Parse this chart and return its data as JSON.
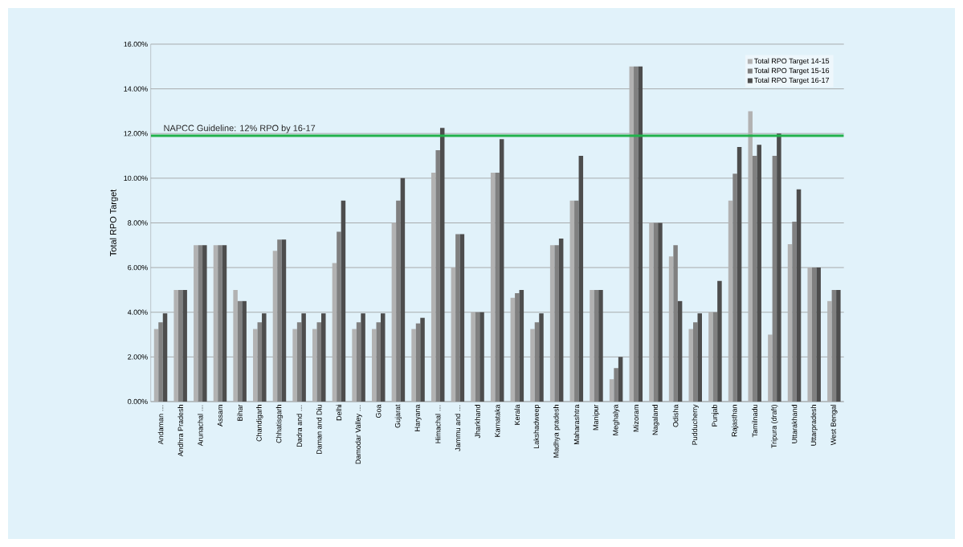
{
  "chart_data": {
    "type": "bar",
    "ylabel": "Total RPO Target",
    "categories": [
      "Andaman …",
      "Andhra Pradesh",
      "Arunachal …",
      "Assam",
      "Bihar",
      "Chandigarh",
      "Chhatisgarh",
      "Dadra and …",
      "Daman and Diu",
      "Delhi",
      "Damodar Valley …",
      "Goa",
      "Gujarat",
      "Haryana",
      "Himachal …",
      "Jammu and …",
      "Jharkhand",
      "Karnataka",
      "Kerala",
      "Lakshadweep",
      "Madhya pradesh",
      "Maharashtra",
      "Manipur",
      "Meghalya",
      "Mizoram",
      "Nagaland",
      "Odisha",
      "Pudducherry",
      "Punjab",
      "Rajasthan",
      "Tamilnadu",
      "Tripura (draft)",
      "Uttarakhand",
      "Uttarpradesh",
      "West Bengal"
    ],
    "series": [
      {
        "name": "Total RPO Target 14-15",
        "color": "#b2b2b2",
        "values": [
          3.25,
          5,
          7,
          7,
          5,
          3.25,
          6.75,
          3.25,
          3.25,
          6.2,
          3.25,
          3.25,
          8,
          3.25,
          10.25,
          6,
          4,
          10.25,
          4.65,
          3.25,
          7,
          9,
          5,
          1,
          15,
          8,
          6.5,
          3.25,
          4,
          9,
          13,
          3,
          7.05,
          6,
          4.5
        ]
      },
      {
        "name": "Total RPO Target 15-16",
        "color": "#808080",
        "values": [
          3.55,
          5,
          7,
          7,
          4.5,
          3.55,
          7.25,
          3.55,
          3.55,
          7.6,
          3.55,
          3.55,
          9,
          3.5,
          11.25,
          7.5,
          4,
          10.25,
          4.85,
          3.55,
          7,
          9,
          5,
          1.5,
          15,
          8,
          7,
          3.55,
          4,
          10.2,
          11,
          11,
          8.05,
          6,
          5
        ]
      },
      {
        "name": "Total RPO Target 16-17",
        "color": "#4d4d4d",
        "values": [
          3.95,
          5,
          7,
          7,
          4.5,
          3.95,
          7.25,
          3.95,
          3.95,
          9,
          3.95,
          3.95,
          10,
          3.75,
          12.25,
          7.5,
          4,
          11.75,
          5,
          3.95,
          7.3,
          11,
          5,
          2,
          15,
          8,
          4.5,
          3.95,
          5.4,
          11.4,
          11.5,
          12,
          9.5,
          6,
          5
        ]
      }
    ],
    "ylim": [
      0,
      16
    ],
    "yticks": [
      {
        "value": 0,
        "label": "0.00%"
      },
      {
        "value": 2,
        "label": "2.00%"
      },
      {
        "value": 4,
        "label": "4.00%"
      },
      {
        "value": 6,
        "label": "6.00%"
      },
      {
        "value": 8,
        "label": "8.00%"
      },
      {
        "value": 10,
        "label": "10.00%"
      },
      {
        "value": 12,
        "label": "12.00%"
      },
      {
        "value": 14,
        "label": "14.00%"
      },
      {
        "value": 16,
        "label": "16.00%"
      }
    ],
    "ref_lines": [
      {
        "axis": "y",
        "value": 11.9,
        "label": "NAPCC Guideline: 12% RPO by 16-17",
        "color": "#22b14c"
      }
    ],
    "grid": "y",
    "legend": "top right"
  }
}
